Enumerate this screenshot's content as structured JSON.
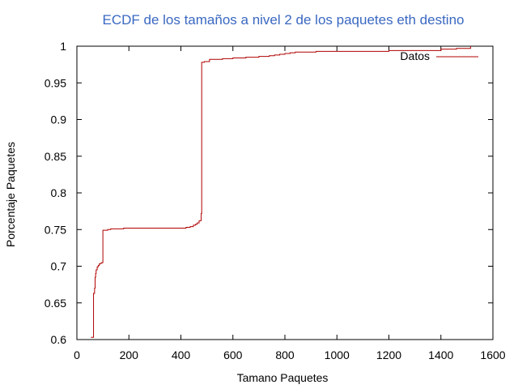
{
  "chart_data": {
    "type": "line",
    "title": "ECDF de los tamaños a nivel 2 de los paquetes eth destino",
    "xlabel": "Tamano Paquetes",
    "ylabel": "Porcentaje Paquetes",
    "xlim": [
      0,
      1600
    ],
    "ylim": [
      0.6,
      1.0
    ],
    "x_ticks": [
      0,
      200,
      400,
      600,
      800,
      1000,
      1200,
      1400,
      1600
    ],
    "y_ticks": [
      0.6,
      0.65,
      0.7,
      0.75,
      0.8,
      0.85,
      0.9,
      0.95,
      1
    ],
    "y_tick_labels": [
      "0.6",
      "0.65",
      "0.7",
      "0.75",
      "0.8",
      "0.85",
      "0.9",
      "0.95",
      "1"
    ],
    "grid": false,
    "legend_position": "top-right",
    "colors": {
      "series": "#b00000",
      "title": "#3a68c2"
    },
    "series": [
      {
        "name": "Datos",
        "step": true,
        "points": [
          [
            54,
            0.603
          ],
          [
            64,
            0.663
          ],
          [
            68,
            0.67
          ],
          [
            70,
            0.685
          ],
          [
            72,
            0.69
          ],
          [
            74,
            0.695
          ],
          [
            78,
            0.699
          ],
          [
            82,
            0.701
          ],
          [
            86,
            0.703
          ],
          [
            90,
            0.704
          ],
          [
            96,
            0.705
          ],
          [
            100,
            0.749
          ],
          [
            118,
            0.75
          ],
          [
            130,
            0.751
          ],
          [
            180,
            0.752
          ],
          [
            380,
            0.752
          ],
          [
            420,
            0.753
          ],
          [
            436,
            0.754
          ],
          [
            448,
            0.756
          ],
          [
            456,
            0.757
          ],
          [
            462,
            0.759
          ],
          [
            470,
            0.762
          ],
          [
            478,
            0.772
          ],
          [
            480,
            0.978
          ],
          [
            490,
            0.979
          ],
          [
            510,
            0.982
          ],
          [
            560,
            0.983
          ],
          [
            600,
            0.984
          ],
          [
            650,
            0.985
          ],
          [
            700,
            0.986
          ],
          [
            740,
            0.987
          ],
          [
            760,
            0.988
          ],
          [
            780,
            0.989
          ],
          [
            800,
            0.99
          ],
          [
            820,
            0.991
          ],
          [
            840,
            0.992
          ],
          [
            920,
            0.993
          ],
          [
            1000,
            0.993
          ],
          [
            1200,
            0.994
          ],
          [
            1400,
            0.996
          ],
          [
            1460,
            0.997
          ],
          [
            1514,
            1.0
          ]
        ]
      }
    ]
  }
}
